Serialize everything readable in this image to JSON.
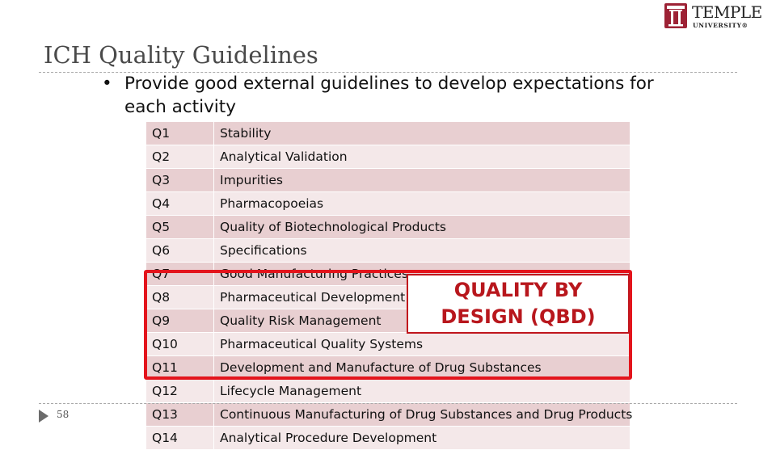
{
  "logo": {
    "name": "TEMPLE",
    "sub": "UNIVERSITY®"
  },
  "slide": {
    "title": "ICH Quality Guidelines",
    "bullet": "Provide good external guidelines to develop expectations for each activity",
    "page_number": "58"
  },
  "guidelines": [
    {
      "code": "Q1",
      "name": "Stability"
    },
    {
      "code": "Q2",
      "name": "Analytical Validation"
    },
    {
      "code": "Q3",
      "name": "Impurities"
    },
    {
      "code": "Q4",
      "name": "Pharmacopoeias"
    },
    {
      "code": "Q5",
      "name": "Quality of Biotechnological Products"
    },
    {
      "code": "Q6",
      "name": "Specifications"
    },
    {
      "code": "Q7",
      "name": "Good Manufacturing Practices"
    },
    {
      "code": "Q8",
      "name": "Pharmaceutical Development"
    },
    {
      "code": "Q9",
      "name": "Quality Risk Management"
    },
    {
      "code": "Q10",
      "name": "Pharmaceutical Quality Systems"
    },
    {
      "code": "Q11",
      "name": "Development and Manufacture of Drug Substances"
    },
    {
      "code": "Q12",
      "name": "Lifecycle Management"
    },
    {
      "code": "Q13",
      "name": "Continuous Manufacturing of Drug Substances and Drug Products"
    },
    {
      "code": "Q14",
      "name": "Analytical Procedure Development"
    }
  ],
  "callout": {
    "text": "QUALITY BY\nDESIGN (QBD)"
  },
  "colors": {
    "brand": "#9d2235",
    "row_dark": "#e8cfd1",
    "row_light": "#f4e8e9",
    "highlight": "#e3141c"
  }
}
